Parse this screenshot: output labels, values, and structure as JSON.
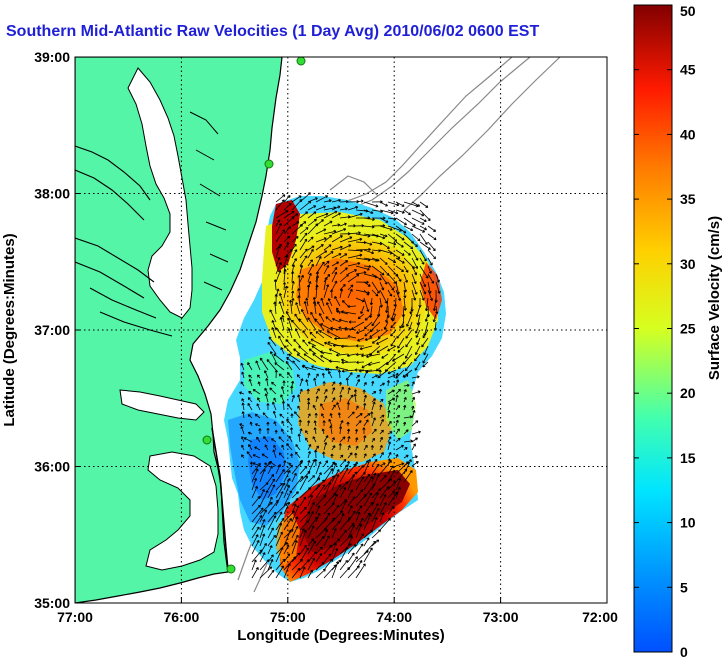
{
  "title": "Southern Mid-Atlantic Raw Velocities (1 Day Avg) 2010/06/02 0600 EST",
  "map": {
    "xlabel": "Longitude (Degrees:Minutes)",
    "ylabel": "Latitude (Degrees:Minutes)",
    "lon_ticks": [
      "77:00",
      "76:00",
      "75:00",
      "74:00",
      "73:00",
      "72:00"
    ],
    "lat_ticks": [
      "39:00",
      "38:00",
      "37:00",
      "36:00",
      "35:00"
    ],
    "lon_range": [
      -77,
      -72
    ],
    "lat_range": [
      35,
      39
    ]
  },
  "colorbar": {
    "label": "Surface Velocity (cm/s)",
    "range": [
      0,
      50
    ],
    "ticks": [
      "0",
      "5",
      "10",
      "15",
      "20",
      "25",
      "30",
      "35",
      "40",
      "45",
      "50"
    ],
    "colormap": "jet"
  },
  "colors": {
    "land": "#55f5a8",
    "coast": "#000000",
    "bathymetry": "#888888",
    "station": "#33dd33",
    "title": "#1f1fd6"
  }
}
